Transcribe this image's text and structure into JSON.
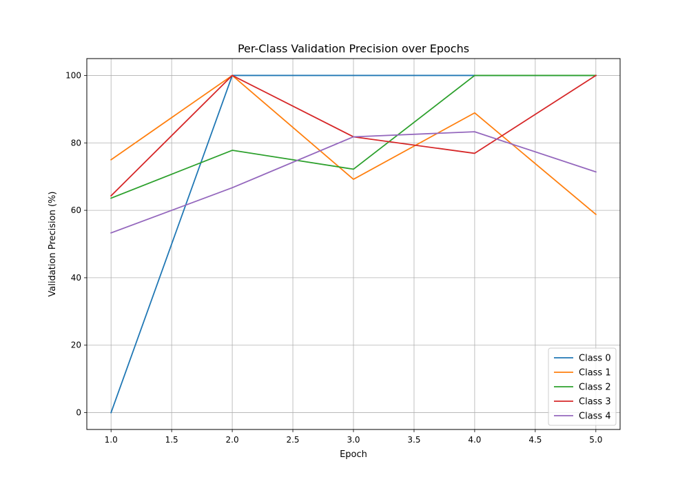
{
  "chart_data": {
    "type": "line",
    "title": "Per-Class Validation Precision over Epochs",
    "xlabel": "Epoch",
    "ylabel": "Validation Precision (%)",
    "x": [
      1,
      2,
      3,
      4,
      5
    ],
    "xlim": [
      0.8,
      5.2
    ],
    "ylim": [
      -5,
      105
    ],
    "xticks": [
      1.0,
      1.5,
      2.0,
      2.5,
      3.0,
      3.5,
      4.0,
      4.5,
      5.0
    ],
    "xtick_labels": [
      "1.0",
      "1.5",
      "2.0",
      "2.5",
      "3.0",
      "3.5",
      "4.0",
      "4.5",
      "5.0"
    ],
    "yticks": [
      0,
      20,
      40,
      60,
      80,
      100
    ],
    "ytick_labels": [
      "0",
      "20",
      "40",
      "60",
      "80",
      "100"
    ],
    "grid": true,
    "legend_position": "lower-right",
    "series": [
      {
        "name": "Class 0",
        "color": "#1f77b4",
        "values": [
          0,
          100,
          100,
          100,
          100
        ]
      },
      {
        "name": "Class 1",
        "color": "#ff7f0e",
        "values": [
          75,
          100,
          69.2,
          88.9,
          58.8
        ]
      },
      {
        "name": "Class 2",
        "color": "#2ca02c",
        "values": [
          63.6,
          77.8,
          72.2,
          100,
          100
        ]
      },
      {
        "name": "Class 3",
        "color": "#d62728",
        "values": [
          64.3,
          100,
          81.8,
          76.9,
          100
        ]
      },
      {
        "name": "Class 4",
        "color": "#9467bd",
        "values": [
          53.3,
          66.7,
          81.8,
          83.3,
          71.4
        ]
      }
    ]
  }
}
